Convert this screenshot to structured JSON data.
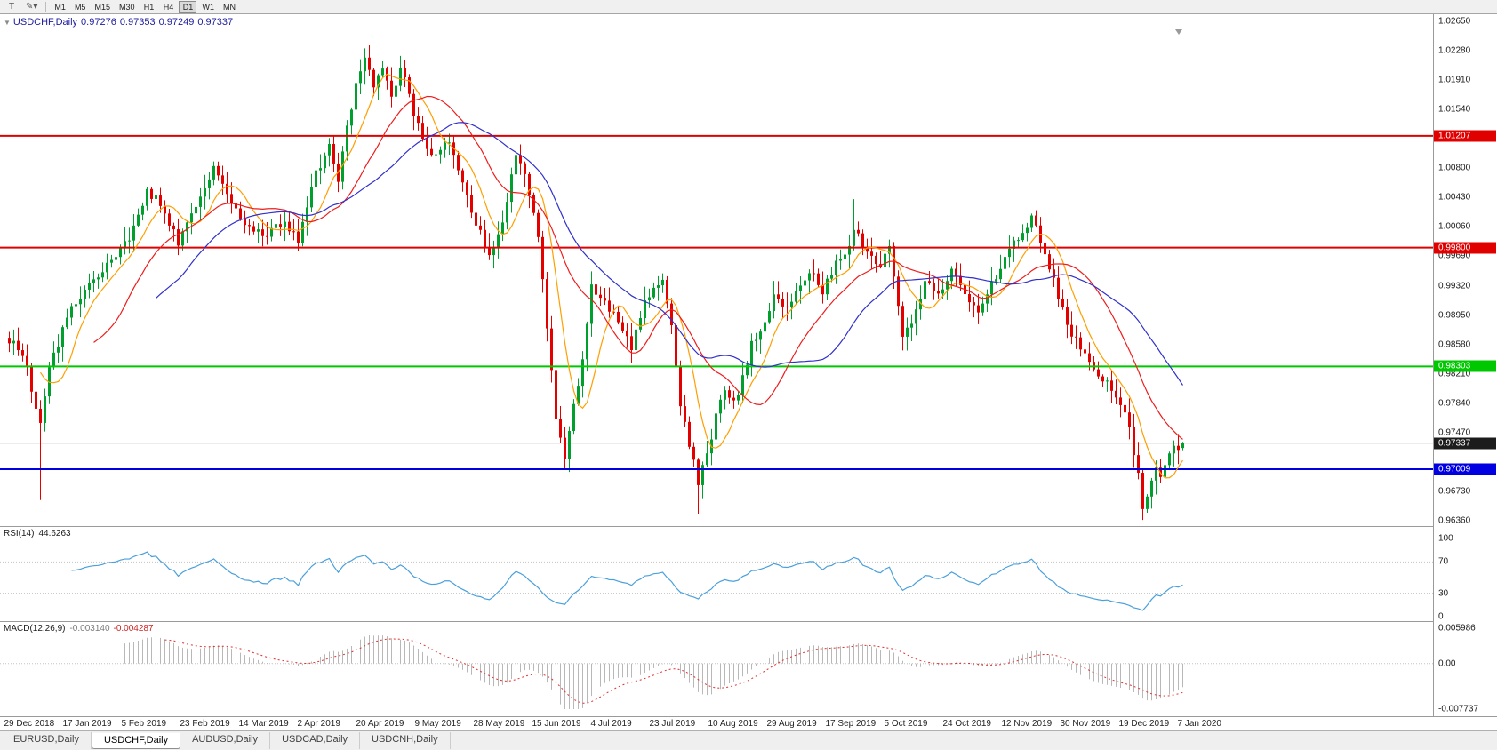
{
  "icons": {
    "chart_tool": "T",
    "line_studies": "✎",
    "dropdown": "▾",
    "ohlc_expand": "▼"
  },
  "toolbar": {
    "timeframes": [
      "M1",
      "M5",
      "M15",
      "M30",
      "H1",
      "H4",
      "D1",
      "W1",
      "MN"
    ],
    "active_timeframe": "D1"
  },
  "chart_header": {
    "symbol": "USDCHF,Daily",
    "open": "0.97276",
    "high": "0.97353",
    "low": "0.97249",
    "close": "0.97337"
  },
  "price_axis": {
    "max": 1.0265,
    "min": 0.9636,
    "ticks": [
      "1.02650",
      "1.02280",
      "1.01910",
      "1.01540",
      "1.00800",
      "1.00430",
      "1.00060",
      "0.99690",
      "0.99320",
      "0.98950",
      "0.98580",
      "0.98210",
      "0.97840",
      "0.97470",
      "0.96730",
      "0.96360"
    ]
  },
  "levels": [
    {
      "price": 1.01207,
      "label": "1.01207",
      "color": "#e00000",
      "width": 2
    },
    {
      "price": 0.998,
      "label": "0.99800",
      "color": "#e00000",
      "width": 2
    },
    {
      "price": 0.98303,
      "label": "0.98303",
      "color": "#00c800",
      "width": 2
    },
    {
      "price": 0.97009,
      "label": "0.97009",
      "color": "#0000e0",
      "width": 2
    }
  ],
  "current_price": {
    "value": 0.97337,
    "label": "0.97337",
    "line_color": "#b6b6b6",
    "label_bg": "#1c1c1c"
  },
  "time_axis": {
    "labels": [
      "29 Dec 2018",
      "17 Jan 2019",
      "5 Feb 2019",
      "23 Feb 2019",
      "14 Mar 2019",
      "2 Apr 2019",
      "20 Apr 2019",
      "9 May 2019",
      "28 May 2019",
      "15 Jun 2019",
      "4 Jul 2019",
      "23 Jul 2019",
      "10 Aug 2019",
      "29 Aug 2019",
      "17 Sep 2019",
      "5 Oct 2019",
      "24 Oct 2019",
      "12 Nov 2019",
      "30 Nov 2019",
      "19 Dec 2019",
      "7 Jan 2020"
    ]
  },
  "rsi_panel": {
    "label": "RSI(14)",
    "value": "44.6263",
    "ticks": [
      100,
      70,
      30,
      0
    ],
    "dotted_levels": [
      70,
      30
    ],
    "scale_max": 100,
    "scale_min": 0,
    "line_color": "#4aa0dc"
  },
  "macd_panel": {
    "label": "MACD(12,26,9)",
    "value_main": "-0.003140",
    "value_signal": "-0.004287",
    "ticks": [
      {
        "value": 0.005986,
        "text": "0.005986"
      },
      {
        "value": 0,
        "text": "0.00"
      },
      {
        "value": -0.007737,
        "text": "-0.007737"
      }
    ],
    "axis_max": 0.005986,
    "axis_min": -0.007737,
    "histogram_color": "#b8b8b8",
    "signal_color": "#e03030"
  },
  "tabs": [
    {
      "label": "EURUSD,Daily",
      "active": false
    },
    {
      "label": "USDCHF,Daily",
      "active": true
    },
    {
      "label": "AUDUSD,Daily",
      "active": false
    },
    {
      "label": "USDCAD,Daily",
      "active": false
    },
    {
      "label": "USDCNH,Daily",
      "active": false
    }
  ],
  "chart_data": {
    "type": "candlestick",
    "symbol": "USDCHF",
    "timeframe": "Daily",
    "bars": 265,
    "y_range": [
      0.9636,
      1.0265
    ],
    "last_bar": {
      "open": 0.97276,
      "high": 0.97353,
      "low": 0.97249,
      "close": 0.97337
    },
    "up_color": "#009f2e",
    "down_color": "#e50000",
    "price_anchors": [
      [
        0,
        0.9865
      ],
      [
        3,
        0.9848
      ],
      [
        7,
        0.976
      ],
      [
        9,
        0.9832
      ],
      [
        14,
        0.9902
      ],
      [
        18,
        0.993
      ],
      [
        22,
        0.9958
      ],
      [
        27,
        0.9992
      ],
      [
        31,
        1.0052
      ],
      [
        34,
        1.0035
      ],
      [
        38,
        0.9986
      ],
      [
        42,
        1.003
      ],
      [
        46,
        1.0078
      ],
      [
        49,
        1.0045
      ],
      [
        52,
        1.002
      ],
      [
        57,
        0.9992
      ],
      [
        62,
        1.0012
      ],
      [
        65,
        0.9988
      ],
      [
        69,
        1.0075
      ],
      [
        72,
        1.0108
      ],
      [
        74,
        1.0062
      ],
      [
        76,
        1.0135
      ],
      [
        79,
        1.0205
      ],
      [
        80,
        1.0225
      ],
      [
        82,
        1.0178
      ],
      [
        84,
        1.0208
      ],
      [
        86,
        1.017
      ],
      [
        88,
        1.0208
      ],
      [
        90,
        1.017
      ],
      [
        93,
        1.0112
      ],
      [
        96,
        1.0092
      ],
      [
        99,
        1.0118
      ],
      [
        102,
        1.0062
      ],
      [
        105,
        1.0012
      ],
      [
        108,
        0.9972
      ],
      [
        111,
        1.001
      ],
      [
        114,
        1.0098
      ],
      [
        116,
        1.0078
      ],
      [
        119,
        0.9992
      ],
      [
        121,
        0.9882
      ],
      [
        123,
        0.9762
      ],
      [
        125,
        0.971
      ],
      [
        126,
        0.9748
      ],
      [
        129,
        0.984
      ],
      [
        131,
        0.9932
      ],
      [
        134,
        0.991
      ],
      [
        137,
        0.9886
      ],
      [
        140,
        0.9852
      ],
      [
        143,
        0.9912
      ],
      [
        147,
        0.9938
      ],
      [
        149,
        0.9886
      ],
      [
        151,
        0.9782
      ],
      [
        153,
        0.9732
      ],
      [
        155,
        0.9682
      ],
      [
        157,
        0.9722
      ],
      [
        159,
        0.9766
      ],
      [
        161,
        0.98
      ],
      [
        163,
        0.9782
      ],
      [
        165,
        0.9816
      ],
      [
        167,
        0.9858
      ],
      [
        170,
        0.989
      ],
      [
        172,
        0.9922
      ],
      [
        174,
        0.99
      ],
      [
        177,
        0.9924
      ],
      [
        180,
        0.995
      ],
      [
        183,
        0.9926
      ],
      [
        186,
        0.9958
      ],
      [
        189,
        0.9984
      ],
      [
        190,
        1.0004
      ],
      [
        193,
        0.9972
      ],
      [
        196,
        0.996
      ],
      [
        198,
        0.9978
      ],
      [
        201,
        0.9868
      ],
      [
        204,
        0.99
      ],
      [
        206,
        0.9934
      ],
      [
        209,
        0.9924
      ],
      [
        212,
        0.995
      ],
      [
        215,
        0.9926
      ],
      [
        218,
        0.9896
      ],
      [
        220,
        0.992
      ],
      [
        223,
        0.9958
      ],
      [
        226,
        0.9988
      ],
      [
        229,
        1.0008
      ],
      [
        230,
        1.0026
      ],
      [
        232,
        0.999
      ],
      [
        235,
        0.994
      ],
      [
        237,
        0.9902
      ],
      [
        239,
        0.9872
      ],
      [
        241,
        0.9856
      ],
      [
        243,
        0.984
      ],
      [
        245,
        0.982
      ],
      [
        248,
        0.98
      ],
      [
        250,
        0.9786
      ],
      [
        252,
        0.9748
      ],
      [
        254,
        0.9692
      ],
      [
        255,
        0.9654
      ],
      [
        257,
        0.9684
      ],
      [
        258,
        0.9706
      ],
      [
        259,
        0.9694
      ],
      [
        260,
        0.9712
      ],
      [
        262,
        0.9728
      ],
      [
        263,
        0.972
      ],
      [
        264,
        0.97337
      ]
    ],
    "wick_events": [
      {
        "bar": 7,
        "type": "low",
        "price": 0.9662
      },
      {
        "bar": 80,
        "type": "high",
        "price": 1.0231
      },
      {
        "bar": 125,
        "type": "low",
        "price": 0.9701
      },
      {
        "bar": 155,
        "type": "low",
        "price": 0.9645
      },
      {
        "bar": 190,
        "type": "high",
        "price": 1.0041
      },
      {
        "bar": 255,
        "type": "low",
        "price": 0.9637
      }
    ],
    "moving_averages": [
      {
        "name": "ma-fast",
        "period": 8,
        "color": "#ff9e00"
      },
      {
        "name": "ma-mid",
        "period": 20,
        "color": "#ee1c1c"
      },
      {
        "name": "ma-slow",
        "period": 34,
        "color": "#3030cc"
      }
    ],
    "indicators": {
      "rsi": {
        "period": 14,
        "current": 44.6263
      },
      "macd": {
        "fast": 12,
        "slow": 26,
        "signal": 9,
        "current_main": -0.00314,
        "current_signal": -0.004287
      }
    }
  }
}
